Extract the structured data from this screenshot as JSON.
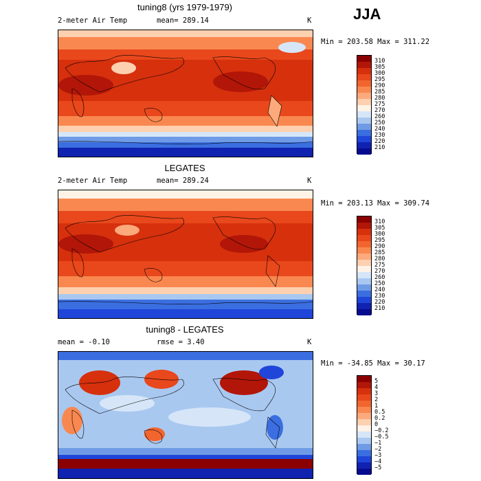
{
  "season": "JJA",
  "panels": [
    {
      "title": "tuning8 (yrs 1979-1979)",
      "left_label": "2-meter Air Temp",
      "center_label": "mean=  289.14",
      "units": "K",
      "minmax": "Min = 203.58 Max = 311.22",
      "colorbar": {
        "labels": [
          "310",
          "305",
          "300",
          "295",
          "290",
          "285",
          "280",
          "275",
          "270",
          "260",
          "250",
          "240",
          "230",
          "220",
          "210"
        ],
        "colors": [
          "#8b0000",
          "#b21608",
          "#d6300d",
          "#e8481c",
          "#f2652f",
          "#f98850",
          "#fca97c",
          "#fdd0b0",
          "#fff2e6",
          "#d6e6f8",
          "#a9c8f0",
          "#6f9be6",
          "#3b6ee0",
          "#1f45d9",
          "#1022b0",
          "#070b8f"
        ]
      }
    },
    {
      "title": "LEGATES",
      "left_label": "2-meter Air Temp",
      "center_label": "mean=  289.24",
      "units": "K",
      "minmax": "Min = 203.13 Max = 309.74",
      "colorbar": {
        "labels": [
          "310",
          "305",
          "300",
          "295",
          "290",
          "285",
          "280",
          "275",
          "270",
          "260",
          "250",
          "240",
          "230",
          "220",
          "210"
        ],
        "colors": [
          "#8b0000",
          "#b21608",
          "#d6300d",
          "#e8481c",
          "#f2652f",
          "#f98850",
          "#fca97c",
          "#fdd0b0",
          "#fff2e6",
          "#d6e6f8",
          "#a9c8f0",
          "#6f9be6",
          "#3b6ee0",
          "#1f45d9",
          "#1022b0",
          "#070b8f"
        ]
      }
    },
    {
      "title": "tuning8 - LEGATES",
      "left_label": "mean =   -0.10",
      "center_label": "rmse =    3.40",
      "units": "K",
      "minmax": "Min = -34.85 Max =  30.17",
      "colorbar": {
        "labels": [
          "5",
          "4",
          "3",
          "2",
          "1",
          "0.5",
          "0.2",
          "0",
          "−0.2",
          "−0.5",
          "−1",
          "−2",
          "−3",
          "−4",
          "−5"
        ],
        "colors": [
          "#8b0000",
          "#b21608",
          "#d6300d",
          "#e8481c",
          "#f2652f",
          "#f98850",
          "#fca97c",
          "#fdd0b0",
          "#fff2e6",
          "#d6e6f8",
          "#a9c8f0",
          "#6f9be6",
          "#3b6ee0",
          "#1f45d9",
          "#1022b0",
          "#070b8f"
        ]
      }
    }
  ]
}
